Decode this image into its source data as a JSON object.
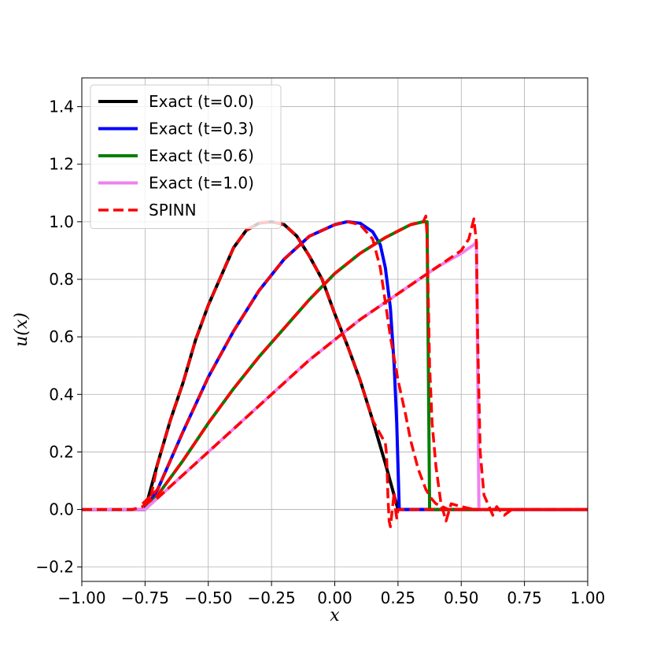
{
  "chart_data": {
    "type": "line",
    "xlabel": "x",
    "ylabel": "u(x)",
    "xlim": [
      -1.0,
      1.0
    ],
    "ylim": [
      -0.25,
      1.5
    ],
    "x_ticks": [
      -1.0,
      -0.75,
      -0.5,
      -0.25,
      0.0,
      0.25,
      0.5,
      0.75,
      1.0
    ],
    "x_tick_labels": [
      "−1.00",
      "−0.75",
      "−0.50",
      "−0.25",
      "0.00",
      "0.25",
      "0.50",
      "0.75",
      "1.00"
    ],
    "y_ticks": [
      -0.2,
      0.0,
      0.2,
      0.4,
      0.6,
      0.8,
      1.0,
      1.2,
      1.4
    ],
    "y_tick_labels": [
      "−0.2",
      "0.0",
      "0.2",
      "0.4",
      "0.6",
      "0.8",
      "1.0",
      "1.2",
      "1.4"
    ],
    "grid": true,
    "legend_position": "top-left",
    "series": [
      {
        "name": "Exact (t=0.0)",
        "color": "#000000",
        "style": "solid",
        "x": [
          -1.0,
          -0.75,
          -0.7,
          -0.65,
          -0.6,
          -0.55,
          -0.5,
          -0.45,
          -0.4,
          -0.35,
          -0.3,
          -0.25,
          -0.2,
          -0.15,
          -0.1,
          -0.05,
          0.0,
          0.05,
          0.1,
          0.15,
          0.2,
          0.25,
          1.0
        ],
        "y": [
          0.0,
          0.0,
          0.16,
          0.31,
          0.44,
          0.59,
          0.71,
          0.81,
          0.91,
          0.97,
          0.995,
          1.0,
          0.99,
          0.95,
          0.88,
          0.8,
          0.68,
          0.57,
          0.45,
          0.31,
          0.16,
          0.0,
          0.0
        ]
      },
      {
        "name": "Exact (t=0.3)",
        "color": "#0000ff",
        "style": "solid",
        "x": [
          -1.0,
          -0.75,
          -0.7,
          -0.6,
          -0.5,
          -0.4,
          -0.3,
          -0.2,
          -0.1,
          0.0,
          0.05,
          0.1,
          0.15,
          0.18,
          0.2,
          0.22,
          0.235,
          0.245,
          0.25,
          0.255,
          1.0
        ],
        "y": [
          0.0,
          0.0,
          0.07,
          0.27,
          0.46,
          0.62,
          0.76,
          0.87,
          0.95,
          0.99,
          1.0,
          0.995,
          0.965,
          0.92,
          0.84,
          0.7,
          0.5,
          0.3,
          0.15,
          0.0,
          0.0
        ]
      },
      {
        "name": "Exact (t=0.6)",
        "color": "#008000",
        "style": "solid",
        "x": [
          -1.0,
          -0.75,
          -0.7,
          -0.6,
          -0.5,
          -0.4,
          -0.3,
          -0.2,
          -0.1,
          0.0,
          0.1,
          0.2,
          0.3,
          0.35,
          0.365,
          0.37,
          0.375,
          1.0
        ],
        "y": [
          0.0,
          0.0,
          0.05,
          0.17,
          0.3,
          0.42,
          0.53,
          0.63,
          0.73,
          0.82,
          0.89,
          0.945,
          0.99,
          1.0,
          1.0,
          0.5,
          0.0,
          0.0
        ]
      },
      {
        "name": "Exact (t=1.0)",
        "color": "#ee82ee",
        "style": "solid",
        "x": [
          -1.0,
          -0.75,
          -0.7,
          -0.6,
          -0.5,
          -0.4,
          -0.3,
          -0.2,
          -0.1,
          0.0,
          0.1,
          0.2,
          0.3,
          0.4,
          0.5,
          0.55,
          0.56,
          0.565,
          0.57,
          1.0
        ],
        "y": [
          0.0,
          0.0,
          0.04,
          0.12,
          0.2,
          0.28,
          0.36,
          0.44,
          0.52,
          0.59,
          0.66,
          0.72,
          0.78,
          0.84,
          0.89,
          0.92,
          0.93,
          0.5,
          0.0,
          0.0
        ]
      },
      {
        "name": "SPINN",
        "color": "#ff0000",
        "style": "dashed",
        "segments": [
          {
            "x": [
              -1.0,
              -0.8,
              -0.76,
              -0.73,
              -0.7,
              -0.65,
              -0.6,
              -0.55,
              -0.5,
              -0.45,
              -0.4,
              -0.35,
              -0.3,
              -0.25,
              -0.2,
              -0.15,
              -0.1,
              -0.05,
              0.0,
              0.05,
              0.1,
              0.15,
              0.2,
              0.205,
              0.21,
              0.215,
              0.22,
              0.225,
              0.23,
              0.235,
              0.24,
              0.245,
              0.25,
              0.26,
              0.3,
              0.4,
              0.5,
              0.6,
              0.7,
              0.8,
              1.0
            ],
            "y": [
              0.0,
              0.0,
              0.01,
              0.03,
              0.16,
              0.31,
              0.44,
              0.59,
              0.71,
              0.81,
              0.91,
              0.97,
              0.995,
              1.0,
              0.99,
              0.95,
              0.88,
              0.8,
              0.68,
              0.57,
              0.45,
              0.31,
              0.23,
              0.19,
              0.05,
              -0.04,
              -0.06,
              -0.02,
              0.02,
              0.06,
              0.0,
              -0.03,
              0.0,
              0.0,
              0.0,
              0.0,
              0.0,
              0.0,
              0.0,
              0.0,
              0.0
            ]
          },
          {
            "x": [
              -0.76,
              -0.7,
              -0.6,
              -0.5,
              -0.4,
              -0.3,
              -0.2,
              -0.1,
              0.0,
              0.05,
              0.1,
              0.15,
              0.18,
              0.2,
              0.22,
              0.25,
              0.28,
              0.3,
              0.33,
              0.36,
              0.38,
              0.4,
              0.45,
              1.0
            ],
            "y": [
              0.02,
              0.07,
              0.27,
              0.46,
              0.62,
              0.76,
              0.87,
              0.95,
              0.99,
              1.0,
              0.99,
              0.94,
              0.84,
              0.72,
              0.6,
              0.45,
              0.33,
              0.24,
              0.14,
              0.07,
              0.04,
              0.02,
              0.0,
              0.0
            ]
          },
          {
            "x": [
              -0.76,
              -0.7,
              -0.6,
              -0.5,
              -0.4,
              -0.3,
              -0.2,
              -0.1,
              0.0,
              0.1,
              0.2,
              0.3,
              0.35,
              0.36,
              0.365,
              0.375,
              0.385,
              0.4,
              0.42,
              0.44,
              0.46,
              0.5,
              0.55,
              1.0
            ],
            "y": [
              0.02,
              0.05,
              0.17,
              0.3,
              0.42,
              0.53,
              0.63,
              0.73,
              0.82,
              0.89,
              0.945,
              0.99,
              1.0,
              1.02,
              0.95,
              0.5,
              0.3,
              0.15,
              0.02,
              -0.04,
              0.02,
              0.01,
              0.0,
              0.0
            ]
          },
          {
            "x": [
              -0.76,
              -0.7,
              -0.6,
              -0.5,
              -0.4,
              -0.3,
              -0.2,
              -0.1,
              0.0,
              0.1,
              0.2,
              0.3,
              0.4,
              0.5,
              0.53,
              0.55,
              0.56,
              0.565,
              0.575,
              0.59,
              0.61,
              0.625,
              0.64,
              0.67,
              0.7,
              1.0
            ],
            "y": [
              0.02,
              0.04,
              0.12,
              0.2,
              0.28,
              0.36,
              0.44,
              0.52,
              0.59,
              0.66,
              0.72,
              0.78,
              0.84,
              0.9,
              0.94,
              1.01,
              0.93,
              0.6,
              0.2,
              0.05,
              0.01,
              -0.02,
              0.01,
              -0.02,
              0.0,
              0.0
            ]
          }
        ]
      }
    ]
  }
}
